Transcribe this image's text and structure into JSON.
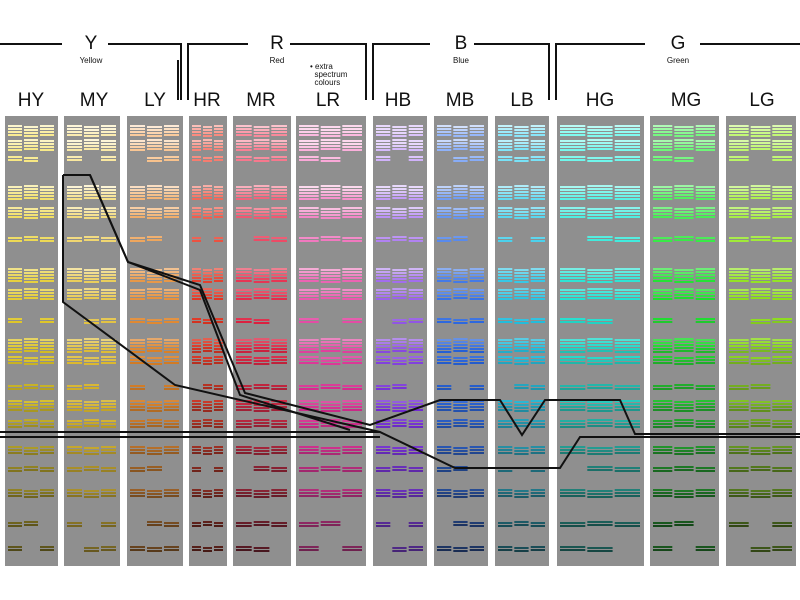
{
  "groups": [
    {
      "letter": "Y",
      "name": "Yellow"
    },
    {
      "letter": "R",
      "name": "Red"
    },
    {
      "letter": "B",
      "name": "Blue"
    },
    {
      "letter": "G",
      "name": "Green"
    }
  ],
  "note_lines": [
    "extra",
    "spectrum",
    "colours"
  ],
  "columns": [
    {
      "label": "HY",
      "hue": 52,
      "lightness": 54
    },
    {
      "label": "MY",
      "hue": 48,
      "lightness": 60
    },
    {
      "label": "LY",
      "hue": 30,
      "lightness": 56
    },
    {
      "label": "HR",
      "hue": 6,
      "lightness": 50
    },
    {
      "label": "MR",
      "hue": 350,
      "lightness": 52
    },
    {
      "label": "LR",
      "hue": 325,
      "lightness": 62
    },
    {
      "label": "HB",
      "hue": 265,
      "lightness": 64
    },
    {
      "label": "MB",
      "hue": 220,
      "lightness": 55
    },
    {
      "label": "LB",
      "hue": 190,
      "lightness": 52
    },
    {
      "label": "HG",
      "hue": 175,
      "lightness": 50
    },
    {
      "label": "MG",
      "hue": 125,
      "lightness": 48
    },
    {
      "label": "LG",
      "hue": 85,
      "lightness": 48
    }
  ]
}
